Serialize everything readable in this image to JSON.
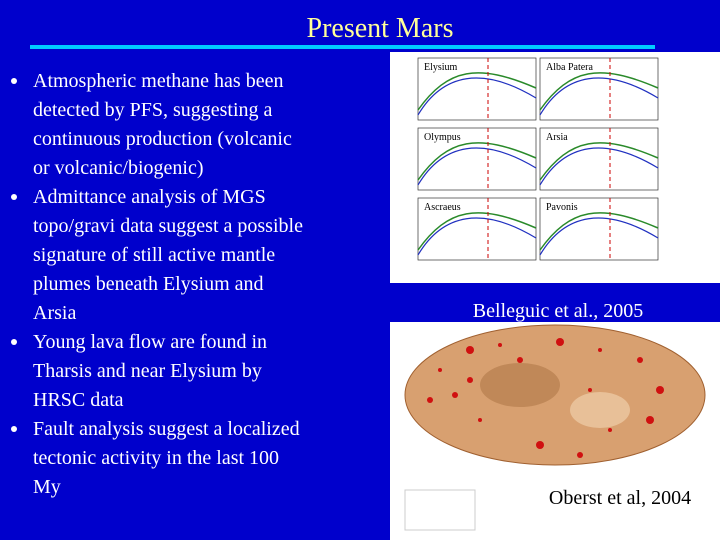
{
  "header": {
    "title": "Present Mars"
  },
  "bullets": [
    [
      "Atmospheric methane has been",
      "detected by PFS, suggesting a",
      "continuous production (volcanic",
      "or volcanic/biogenic)"
    ],
    [
      "Admittance analysis of MGS",
      "topo/gravi data suggest a possible",
      "signature of  still active mantle",
      "plumes beneath Elysium and",
      "Arsia"
    ],
    [
      "Young lava flow are found in",
      "Tharsis and near Elysium by",
      "HRSC data"
    ],
    [
      "Fault analysis suggest a localized",
      "tectonic activity in the last 100",
      "My"
    ]
  ],
  "figures": [
    {
      "panels": [
        "Elysium",
        "Alba Patera",
        "Olympus",
        "Arsia",
        "Ascraeus",
        "Pavonis"
      ],
      "caption": "Belleguic et al., 2005"
    },
    {
      "caption": "Oberst et al, 2004"
    }
  ]
}
